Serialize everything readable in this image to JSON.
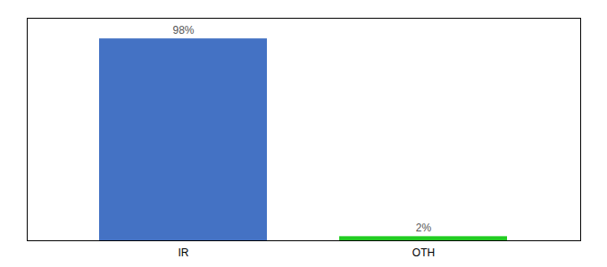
{
  "chart_data": {
    "type": "bar",
    "categories": [
      "IR",
      "OTH"
    ],
    "values": [
      98,
      2
    ],
    "value_labels": [
      "98%",
      "2%"
    ],
    "colors": [
      "#4472c4",
      "#22cc22"
    ],
    "ylim": [
      0,
      108
    ],
    "yticks": [],
    "tick_labels": "x",
    "data_labels": true
  }
}
